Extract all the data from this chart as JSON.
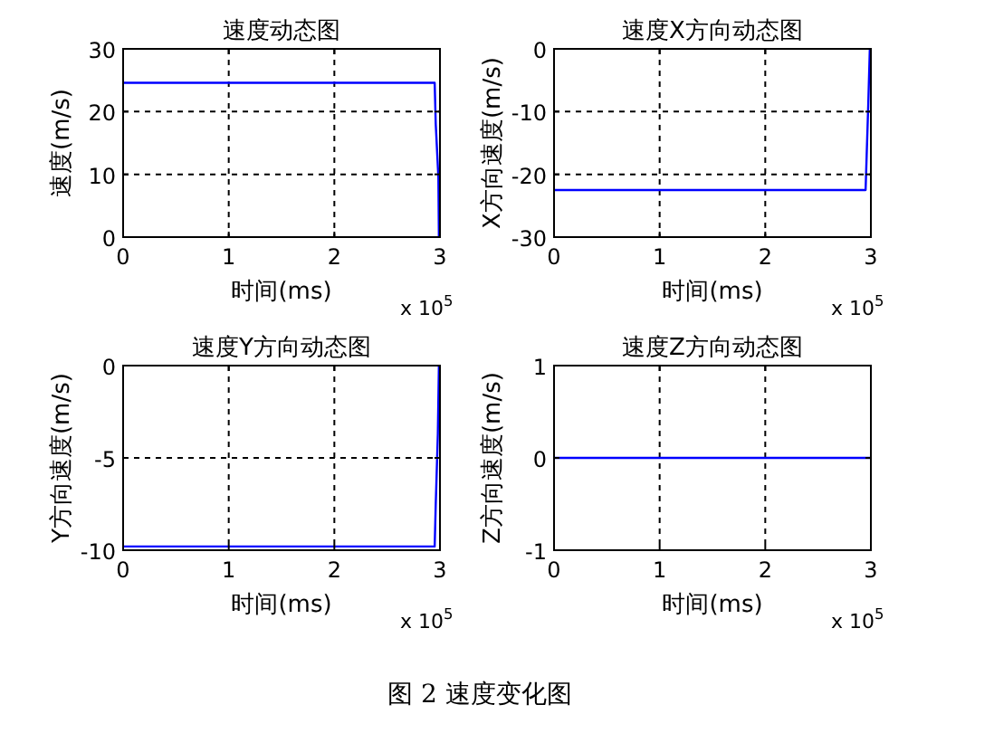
{
  "chart_data": [
    {
      "type": "line",
      "title": "速度动态图",
      "xlabel": "时间(ms)",
      "ylabel": "速度(m/s)",
      "xlim": [
        0,
        3
      ],
      "ylim": [
        0,
        30
      ],
      "xticks": [
        0,
        1,
        2,
        3
      ],
      "yticks": [
        0,
        10,
        20,
        30
      ],
      "grid": true,
      "series": [
        {
          "color": "#0000ff",
          "x": [
            0,
            2.95,
            2.96,
            2.985,
            2.99
          ],
          "values": [
            24.6,
            24.6,
            18,
            9.5,
            0
          ]
        }
      ],
      "annotations": [
        "x 10$^{5}$"
      ]
    },
    {
      "type": "line",
      "title": "速度X方向动态图",
      "xlabel": "时间(ms)",
      "ylabel": "X方向速度(m/s)",
      "xlim": [
        0,
        3
      ],
      "ylim": [
        -30,
        0
      ],
      "xticks": [
        0,
        1,
        2,
        3
      ],
      "yticks": [
        -30,
        -20,
        -10,
        0
      ],
      "grid": true,
      "series": [
        {
          "color": "#0000ff",
          "x": [
            0,
            2.95,
            2.96,
            2.975,
            2.99
          ],
          "values": [
            -22.5,
            -22.5,
            -17,
            -9,
            0
          ]
        }
      ],
      "annotations": [
        "x 10$^{5}$"
      ]
    },
    {
      "type": "line",
      "title": "速度Y方向动态图",
      "xlabel": "时间(ms)",
      "ylabel": "Y方向速度(m/s)",
      "xlim": [
        0,
        3
      ],
      "ylim": [
        -10,
        0
      ],
      "xticks": [
        0,
        1,
        2,
        3
      ],
      "yticks": [
        -10,
        -5,
        0
      ],
      "grid": true,
      "series": [
        {
          "color": "#0000ff",
          "x": [
            0,
            2.95,
            2.96,
            2.98,
            2.99
          ],
          "values": [
            -9.8,
            -9.8,
            -7.5,
            -3.7,
            0
          ]
        }
      ],
      "annotations": [
        "x 10$^{5}$"
      ]
    },
    {
      "type": "line",
      "title": "速度Z方向动态图",
      "xlabel": "时间(ms)",
      "ylabel": "Z方向速度(m/s)",
      "xlim": [
        0,
        3
      ],
      "ylim": [
        -1,
        1
      ],
      "xticks": [
        0,
        1,
        2,
        3
      ],
      "yticks": [
        -1,
        0,
        1
      ],
      "grid": true,
      "series": [
        {
          "color": "#0000ff",
          "x": [
            0,
            3
          ],
          "values": [
            0,
            0
          ]
        }
      ],
      "annotations": [
        "x 10$^{5}$",
        "图 2 速度变化图"
      ]
    }
  ]
}
